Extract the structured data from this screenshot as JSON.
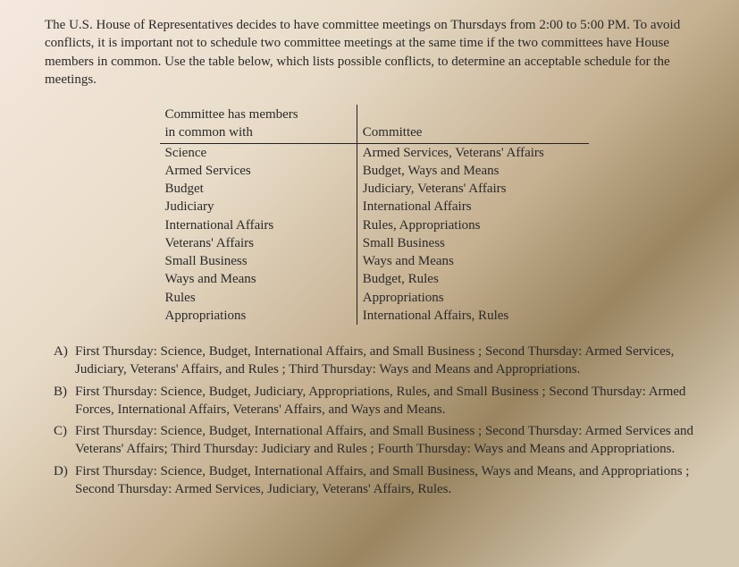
{
  "intro": "The U.S. House of Representatives decides to have committee meetings on Thursdays from 2:00 to 5:00 PM. To avoid conflicts, it is important not to schedule two committee meetings at the same time if the two committees have House members in common. Use the table below, which lists possible conflicts, to determine an acceptable schedule for the meetings.",
  "table": {
    "header_left_line1": "Committee has members",
    "header_left_line2": "in common with",
    "header_right": "Committee",
    "rows": [
      {
        "left": "Science",
        "right": "Armed Services, Veterans' Affairs"
      },
      {
        "left": "Armed Services",
        "right": "Budget, Ways and Means"
      },
      {
        "left": "Budget",
        "right": "Judiciary, Veterans' Affairs"
      },
      {
        "left": "Judiciary",
        "right": "International Affairs"
      },
      {
        "left": "International Affairs",
        "right": "Rules, Appropriations"
      },
      {
        "left": "Veterans' Affairs",
        "right": "Small Business"
      },
      {
        "left": "Small Business",
        "right": "Ways and Means"
      },
      {
        "left": "Ways and Means",
        "right": "Budget, Rules"
      },
      {
        "left": "Rules",
        "right": "Appropriations"
      },
      {
        "left": "Appropriations",
        "right": "International Affairs, Rules"
      }
    ]
  },
  "choices": {
    "A": {
      "letter": "A)",
      "text": "First Thursday: Science, Budget, International Affairs, and Small Business ; Second Thursday: Armed Services, Judiciary, Veterans' Affairs, and Rules ; Third Thursday: Ways and Means and Appropriations."
    },
    "B": {
      "letter": "B)",
      "text": "First Thursday: Science, Budget, Judiciary, Appropriations, Rules, and Small Business ; Second Thursday: Armed Forces, International Affairs, Veterans' Affairs, and Ways and Means."
    },
    "C": {
      "letter": "C)",
      "text": "First Thursday: Science, Budget, International Affairs, and Small Business ; Second Thursday: Armed Services and Veterans' Affairs; Third Thursday: Judiciary and Rules ; Fourth Thursday: Ways and Means and Appropriations."
    },
    "D": {
      "letter": "D)",
      "text": "First Thursday: Science, Budget, International Affairs, and Small Business, Ways and Means, and Appropriations ; Second Thursday: Armed Services, Judiciary, Veterans' Affairs, Rules."
    }
  }
}
